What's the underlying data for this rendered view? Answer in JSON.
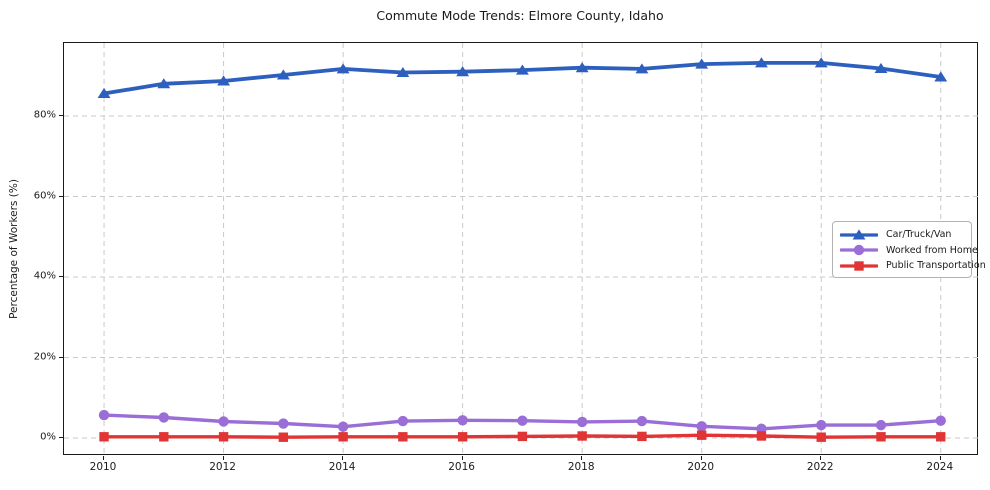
{
  "title": "Commute Mode Trends: Elmore County, Idaho",
  "axes": {
    "ylabel": "Percentage of Workers (%)",
    "xlabel": "",
    "y_tick_labels": [
      "0%",
      "20%",
      "40%",
      "60%",
      "80%"
    ],
    "x_tick_labels": [
      "2010",
      "2012",
      "2014",
      "2016",
      "2018",
      "2020",
      "2022",
      "2024"
    ]
  },
  "legend": {
    "position": "center right",
    "items": [
      "Car/Truck/Van",
      "Worked from Home",
      "Public Transportation"
    ]
  },
  "colors": {
    "car": "#2d5fbe",
    "home": "#9a6dd7",
    "transit": "#e03534",
    "grid": "#c9c9c9",
    "spine": "#1a1a1a"
  },
  "chart_data": {
    "type": "line",
    "title": "Commute Mode Trends: Elmore County, Idaho",
    "xlabel": "",
    "ylabel": "Percentage of Workers (%)",
    "x": [
      2010,
      2011,
      2012,
      2013,
      2014,
      2015,
      2016,
      2017,
      2018,
      2019,
      2020,
      2021,
      2022,
      2023,
      2024
    ],
    "series": [
      {
        "name": "Car/Truck/Van",
        "color": "#2d5fbe",
        "marker": "triangle",
        "values": [
          85.6,
          88.0,
          88.7,
          90.2,
          91.7,
          90.8,
          91.0,
          91.4,
          92.0,
          91.7,
          92.9,
          93.2,
          93.2,
          91.8,
          89.7
        ]
      },
      {
        "name": "Worked from Home",
        "color": "#9a6dd7",
        "marker": "circle",
        "values": [
          5.7,
          5.1,
          4.1,
          3.6,
          2.8,
          4.2,
          4.4,
          4.3,
          4.0,
          4.2,
          2.9,
          2.3,
          3.2,
          3.2,
          4.3
        ]
      },
      {
        "name": "Public Transportation",
        "color": "#e03534",
        "marker": "square",
        "values": [
          0.3,
          0.3,
          0.3,
          0.2,
          0.3,
          0.3,
          0.3,
          0.4,
          0.5,
          0.4,
          0.7,
          0.5,
          0.2,
          0.3,
          0.3
        ]
      }
    ],
    "x_tick_values": [
      2010,
      2012,
      2014,
      2016,
      2018,
      2020,
      2022,
      2024
    ],
    "y_tick_values": [
      0,
      20,
      40,
      60,
      80
    ],
    "xlim": [
      2009.33,
      2024.64
    ],
    "ylim": [
      -4.47,
      98.14
    ],
    "grid": true,
    "grid_style": "dashed",
    "legend_position": "center right"
  }
}
